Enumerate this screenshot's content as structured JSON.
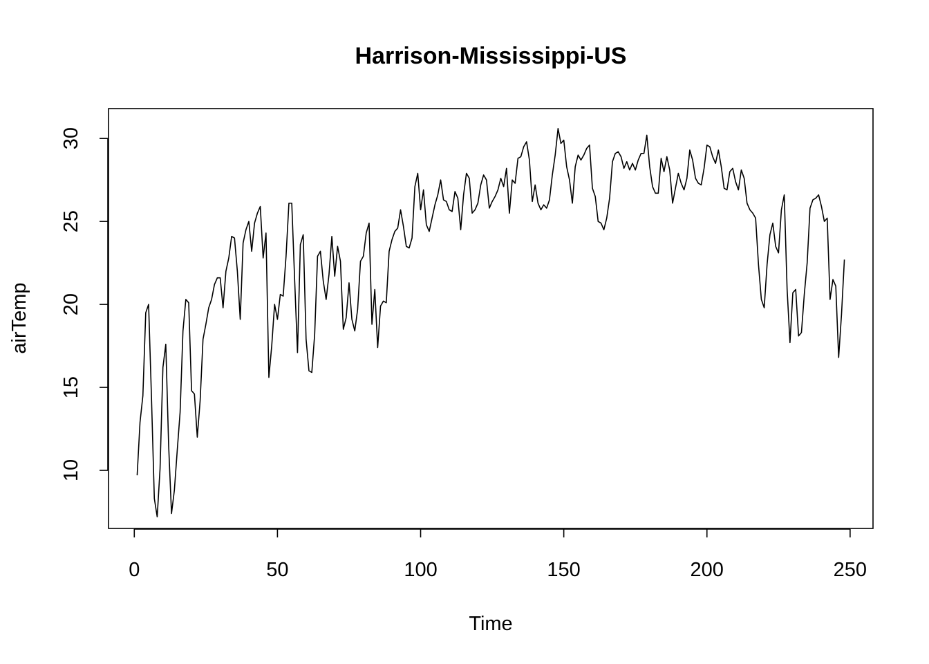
{
  "chart_data": {
    "type": "line",
    "title": "Harrison-Mississippi-US",
    "xlabel": "Time",
    "ylabel": "airTemp",
    "xlim": [
      -9,
      258
    ],
    "ylim": [
      6.5,
      31.8
    ],
    "xticks": [
      0,
      50,
      100,
      150,
      200,
      250
    ],
    "yticks": [
      10,
      15,
      20,
      25,
      30
    ],
    "grid": false,
    "legend": "none",
    "colors": {
      "line": "#000000",
      "axis": "#000000",
      "background": "#ffffff"
    },
    "series": [
      {
        "x_start": 1,
        "values": [
          9.7,
          12.9,
          14.5,
          19.5,
          20.0,
          14.4,
          8.3,
          7.2,
          10.1,
          16.2,
          17.6,
          11.5,
          7.4,
          8.8,
          11.2,
          13.5,
          18.4,
          20.3,
          20.1,
          14.8,
          14.6,
          12.0,
          14.2,
          17.9,
          18.8,
          19.8,
          20.3,
          21.2,
          21.6,
          21.6,
          19.8,
          22.0,
          22.8,
          24.1,
          24.0,
          22.0,
          19.1,
          23.7,
          24.5,
          25.0,
          23.2,
          24.9,
          25.5,
          25.9,
          22.8,
          24.3,
          15.6,
          17.5,
          20.0,
          19.1,
          20.6,
          20.5,
          22.9,
          26.1,
          26.1,
          21.5,
          17.1,
          23.6,
          24.2,
          17.9,
          16.0,
          15.9,
          18.2,
          22.9,
          23.2,
          21.4,
          20.3,
          21.8,
          24.1,
          21.7,
          23.5,
          22.6,
          18.5,
          19.2,
          21.3,
          19.1,
          18.4,
          19.7,
          22.6,
          22.9,
          24.3,
          24.9,
          18.8,
          20.9,
          17.4,
          19.9,
          20.2,
          20.1,
          23.2,
          23.9,
          24.4,
          24.6,
          25.7,
          24.7,
          23.5,
          23.4,
          24.0,
          27.1,
          27.9,
          25.7,
          26.9,
          24.8,
          24.4,
          25.2,
          26.0,
          26.6,
          27.5,
          26.3,
          26.2,
          25.7,
          25.6,
          26.8,
          26.4,
          24.5,
          26.6,
          27.9,
          27.6,
          25.5,
          25.7,
          26.1,
          27.2,
          27.8,
          27.5,
          25.8,
          26.2,
          26.5,
          26.9,
          27.6,
          27.1,
          28.2,
          25.5,
          27.5,
          27.3,
          28.8,
          28.9,
          29.5,
          29.8,
          28.7,
          26.2,
          27.2,
          26.1,
          25.7,
          26.0,
          25.8,
          26.3,
          27.8,
          29.0,
          30.6,
          29.7,
          29.9,
          28.3,
          27.5,
          26.1,
          28.3,
          29.0,
          28.7,
          29.0,
          29.4,
          29.6,
          27.0,
          26.5,
          25.0,
          24.9,
          24.5,
          25.2,
          26.4,
          28.6,
          29.1,
          29.2,
          28.9,
          28.2,
          28.6,
          28.1,
          28.5,
          28.1,
          28.7,
          29.1,
          29.1,
          30.2,
          28.3,
          27.1,
          26.7,
          26.7,
          28.8,
          28.0,
          28.9,
          28.1,
          26.1,
          27.0,
          27.9,
          27.3,
          26.9,
          27.6,
          29.3,
          28.7,
          27.6,
          27.3,
          27.2,
          28.2,
          29.6,
          29.5,
          28.9,
          28.5,
          29.3,
          28.3,
          27.0,
          26.9,
          28.0,
          28.2,
          27.4,
          26.9,
          28.1,
          27.6,
          26.1,
          25.7,
          25.5,
          25.2,
          22.4,
          20.3,
          19.8,
          22.4,
          24.2,
          24.9,
          23.5,
          23.1,
          25.7,
          26.6,
          20.9,
          17.7,
          20.7,
          20.9,
          18.1,
          18.3,
          20.6,
          22.5,
          25.8,
          26.3,
          26.4,
          26.6,
          25.9,
          25.0,
          25.2,
          20.3,
          21.5,
          21.1,
          16.8,
          19.4,
          22.7
        ]
      }
    ]
  }
}
